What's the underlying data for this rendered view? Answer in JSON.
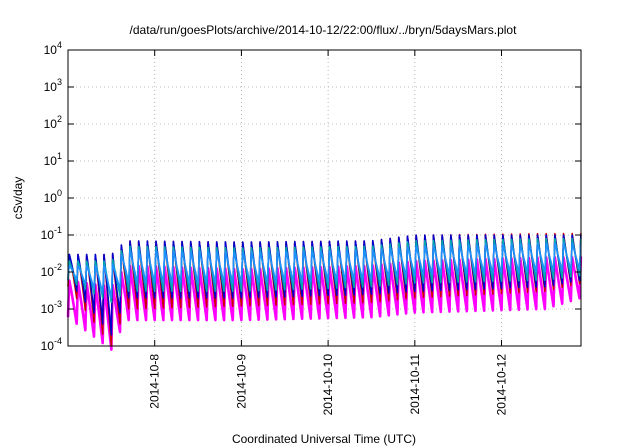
{
  "chart_data": {
    "type": "line",
    "title": "/data/run/goesPlots/archive/2014-10-12/22:00/flux/../bryn/5daysMars.plot",
    "xlabel": "Coordinated Universal Time (UTC)",
    "ylabel": "cSv/day",
    "yscale": "log",
    "ylim": [
      0.0001,
      10000
    ],
    "y_ticks": [
      {
        "value": 0.0001,
        "base": "10",
        "exp": "-4"
      },
      {
        "value": 0.001,
        "base": "10",
        "exp": "-3"
      },
      {
        "value": 0.01,
        "base": "10",
        "exp": "-2"
      },
      {
        "value": 0.1,
        "base": "10",
        "exp": "-1"
      },
      {
        "value": 1,
        "base": "10",
        "exp": "0"
      },
      {
        "value": 10,
        "base": "10",
        "exp": "1"
      },
      {
        "value": 100,
        "base": "10",
        "exp": "2"
      },
      {
        "value": 1000,
        "base": "10",
        "exp": "3"
      },
      {
        "value": 10000,
        "base": "10",
        "exp": "4"
      }
    ],
    "xlim": [
      "2014-10-07 00:00",
      "2014-10-12 22:00"
    ],
    "x_ticks": [
      "2014-10-8",
      "2014-10-9",
      "2014-10-10",
      "2014-10-11",
      "2014-10-12"
    ],
    "grid": true,
    "cycle_hours": 2.4,
    "series": [
      {
        "color": "#ff00ff",
        "values": [
          {
            "t": "2014-10-07 00:00",
            "peak": 0.006,
            "trough": 0.0006
          },
          {
            "t": "2014-10-07 12:00",
            "peak": 0.004,
            "trough": 8e-05
          },
          {
            "t": "2014-10-07 16:00",
            "peak": 0.015,
            "trough": 0.0005
          },
          {
            "t": "2014-10-09 00:00",
            "peak": 0.012,
            "trough": 0.0005
          },
          {
            "t": "2014-10-10 12:00",
            "peak": 0.015,
            "trough": 0.0006
          },
          {
            "t": "2014-10-11 00:00",
            "peak": 0.02,
            "trough": 0.0008
          },
          {
            "t": "2014-10-12 12:00",
            "peak": 0.025,
            "trough": 0.001
          },
          {
            "t": "2014-10-12 22:00",
            "peak": 0.025,
            "trough": 0.002
          }
        ]
      },
      {
        "color": "#cc0000",
        "values": [
          {
            "t": "2014-10-07 00:00",
            "peak": 0.03,
            "trough": 0.004
          },
          {
            "t": "2014-10-07 12:00",
            "peak": 0.03,
            "trough": 0.0001
          },
          {
            "t": "2014-10-07 16:00",
            "peak": 0.07,
            "trough": 0.001
          },
          {
            "t": "2014-10-09 00:00",
            "peak": 0.065,
            "trough": 0.0012
          },
          {
            "t": "2014-10-10 12:00",
            "peak": 0.07,
            "trough": 0.0015
          },
          {
            "t": "2014-10-11 00:00",
            "peak": 0.1,
            "trough": 0.002
          },
          {
            "t": "2014-10-12 12:00",
            "peak": 0.11,
            "trough": 0.003
          },
          {
            "t": "2014-10-12 22:00",
            "peak": 0.11,
            "trough": 0.005
          }
        ]
      },
      {
        "color": "#0000cc",
        "values": [
          {
            "t": "2014-10-07 00:00",
            "peak": 0.03,
            "trough": 0.006
          },
          {
            "t": "2014-10-07 12:00",
            "peak": 0.03,
            "trough": 0.0002
          },
          {
            "t": "2014-10-07 16:00",
            "peak": 0.07,
            "trough": 0.002
          },
          {
            "t": "2014-10-09 00:00",
            "peak": 0.065,
            "trough": 0.002
          },
          {
            "t": "2014-10-10 12:00",
            "peak": 0.07,
            "trough": 0.0025
          },
          {
            "t": "2014-10-11 00:00",
            "peak": 0.1,
            "trough": 0.003
          },
          {
            "t": "2014-10-12 12:00",
            "peak": 0.1,
            "trough": 0.004
          },
          {
            "t": "2014-10-12 22:00",
            "peak": 0.1,
            "trough": 0.006
          }
        ]
      },
      {
        "color": "#00aaaa",
        "values": [
          {
            "t": "2014-10-07 00:00",
            "peak": 0.02,
            "trough": 0.006
          },
          {
            "t": "2014-10-07 12:00",
            "peak": 0.02,
            "trough": 0.0015
          },
          {
            "t": "2014-10-07 16:00",
            "peak": 0.05,
            "trough": 0.003
          },
          {
            "t": "2014-10-09 00:00",
            "peak": 0.045,
            "trough": 0.003
          },
          {
            "t": "2014-10-10 12:00",
            "peak": 0.05,
            "trough": 0.004
          },
          {
            "t": "2014-10-11 00:00",
            "peak": 0.07,
            "trough": 0.005
          },
          {
            "t": "2014-10-12 12:00",
            "peak": 0.08,
            "trough": 0.006
          },
          {
            "t": "2014-10-12 22:00",
            "peak": 0.08,
            "trough": 0.008
          }
        ]
      },
      {
        "color": "#1e90ff",
        "values": [
          {
            "t": "2014-10-07 00:00",
            "peak": 0.015,
            "trough": 0.008
          },
          {
            "t": "2014-10-07 12:00",
            "peak": 0.015,
            "trough": 0.002
          },
          {
            "t": "2014-10-07 16:00",
            "peak": 0.04,
            "trough": 0.005
          },
          {
            "t": "2014-10-09 00:00",
            "peak": 0.035,
            "trough": 0.005
          },
          {
            "t": "2014-10-10 12:00",
            "peak": 0.04,
            "trough": 0.006
          },
          {
            "t": "2014-10-11 00:00",
            "peak": 0.05,
            "trough": 0.008
          },
          {
            "t": "2014-10-12 12:00",
            "peak": 0.06,
            "trough": 0.01
          },
          {
            "t": "2014-10-12 22:00",
            "peak": 0.06,
            "trough": 0.012
          }
        ]
      }
    ]
  }
}
